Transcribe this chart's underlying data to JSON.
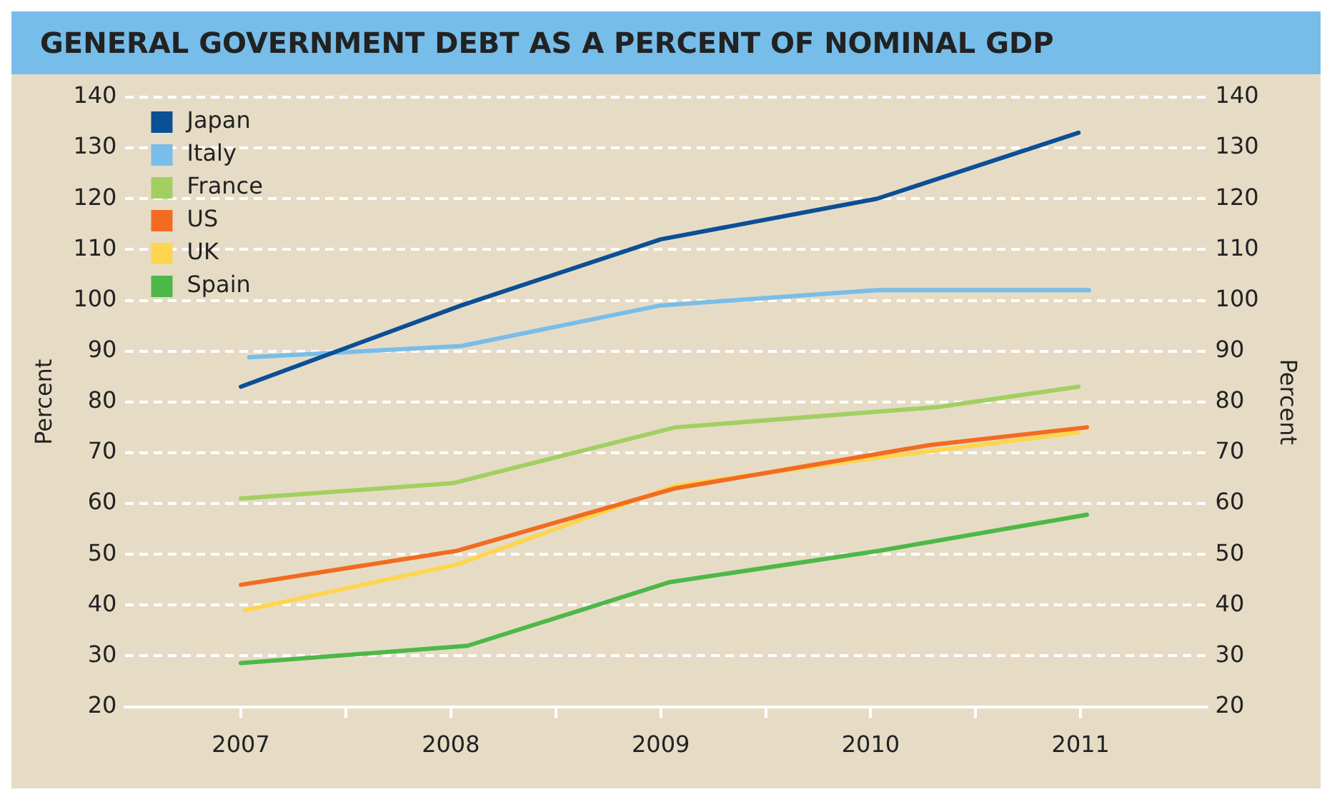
{
  "chart_data": {
    "type": "line",
    "title": "GENERAL GOVERNMENT DEBT AS A PERCENT OF NOMINAL GDP",
    "ylabel": "Percent",
    "y2label": "Percent",
    "xlim": [
      2006.45,
      2011.6
    ],
    "xticks": [
      2007,
      {
        "value": 2007.5,
        "label": null
      },
      2008,
      {
        "value": 2008.5,
        "label": null
      },
      2009,
      {
        "value": 2009.5,
        "label": null
      },
      2010,
      {
        "value": 2010.5,
        "label": null
      },
      2011
    ],
    "ylim": [
      20,
      140
    ],
    "yticks": [
      20,
      30,
      40,
      50,
      60,
      70,
      80,
      90,
      100,
      110,
      120,
      130,
      140
    ],
    "y2lim": [
      20,
      140
    ],
    "y2ticks": [
      20,
      30,
      40,
      50,
      60,
      70,
      80,
      90,
      100,
      110,
      120,
      130,
      140
    ],
    "grid": "y",
    "legend": "top left",
    "marker": "none",
    "line_style": "solid",
    "series": [
      {
        "name": "Japan",
        "color": "#0b4f94",
        "x": [
          2007,
          2008.05,
          2009.0,
          2010.03,
          2010.99
        ],
        "values": [
          83,
          99,
          112,
          120,
          133
        ]
      },
      {
        "name": "Italy",
        "color": "#79bde9",
        "x": [
          2007.04,
          2008.05,
          2009.0,
          2010.03,
          2011.04
        ],
        "values": [
          88.8,
          91,
          99,
          102,
          102
        ]
      },
      {
        "name": "France",
        "color": "#a2cf62",
        "x": [
          2007,
          2008.01,
          2009.07,
          2010.32,
          2010.99
        ],
        "values": [
          61,
          64,
          75,
          79,
          83
        ]
      },
      {
        "name": "US",
        "color": "#f26b21",
        "x": [
          2007,
          2008.03,
          2009.07,
          2010.28,
          2011.03
        ],
        "values": [
          44,
          50.7,
          63,
          71.5,
          75
        ]
      },
      {
        "name": "UK",
        "color": "#fdd54f",
        "x": [
          2007.02,
          2008.03,
          2009.07,
          2010.03,
          2010.99
        ],
        "values": [
          39,
          48,
          63.5,
          69,
          74
        ]
      },
      {
        "name": "Spain",
        "color": "#4db848",
        "x": [
          2007,
          2008.08,
          2009.04,
          2010.04,
          2011.03
        ],
        "values": [
          28.6,
          32,
          44.5,
          50.7,
          57.8
        ]
      }
    ]
  }
}
